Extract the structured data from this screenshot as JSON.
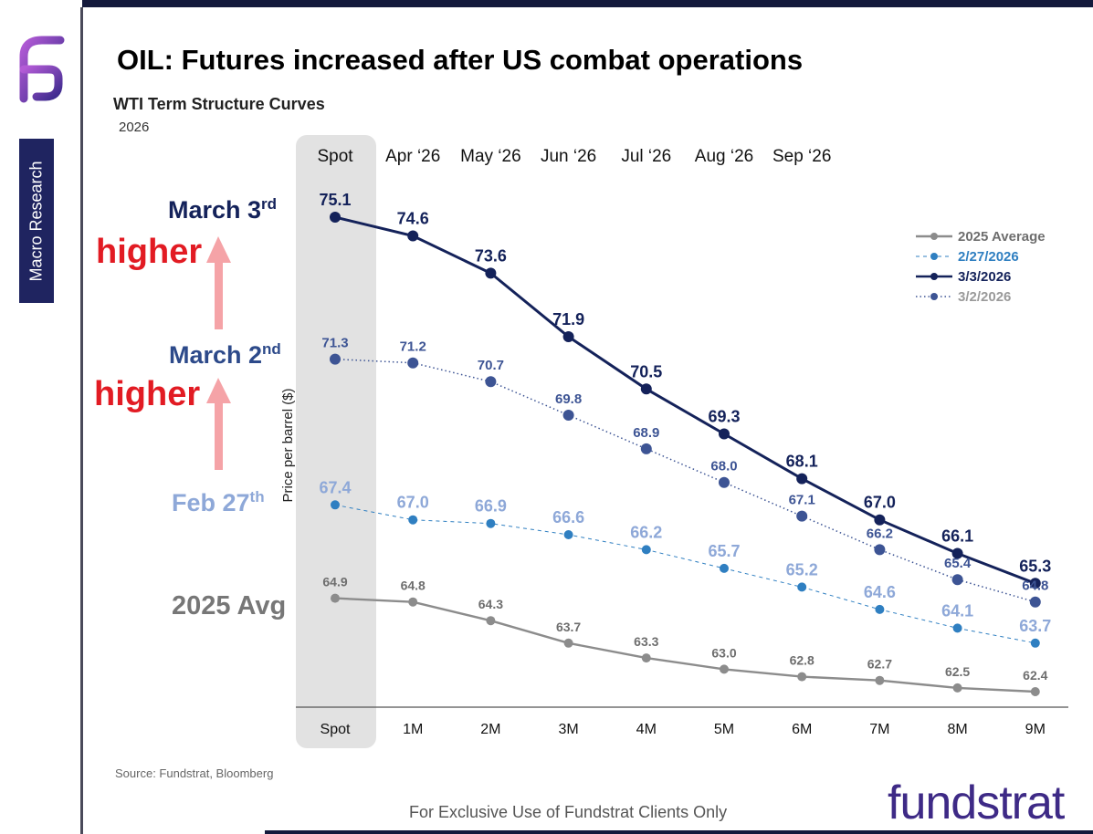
{
  "header": {
    "title": "OIL: Futures increased after US combat operations",
    "subtitle": "WTI Term Structure Curves",
    "year": "2026"
  },
  "sidebar": {
    "tab_label": "Macro Research",
    "logo_icon": "fundstrat-f-logo-icon"
  },
  "annotations": {
    "march3": "March 3",
    "march3_sup": "rd",
    "march2": "March 2",
    "march2_sup": "nd",
    "feb27": "Feb 27",
    "feb27_sup": "th",
    "avg2025": "2025 Avg",
    "higher_1": "higher",
    "higher_2": "higher"
  },
  "footer": {
    "source": "Source: Fundstrat, Bloomberg",
    "disclaimer": "For Exclusive Use of Fundstrat Clients Only",
    "brand": "fundstrat"
  },
  "chart_data": {
    "type": "line",
    "title": "WTI Term Structure Curves",
    "ylabel": "Price per barrel ($)",
    "xlabel": "",
    "categories": [
      "Spot",
      "1M",
      "2M",
      "3M",
      "4M",
      "5M",
      "6M",
      "7M",
      "8M",
      "9M"
    ],
    "top_labels": [
      "Spot",
      "Apr ‘26",
      "May ‘26",
      "Jun ‘26",
      "Jul ‘26",
      "Aug ‘26",
      "Sep ‘26"
    ],
    "ylim": [
      61.5,
      75.5
    ],
    "grid": false,
    "legend_position": "top-right",
    "series": [
      {
        "name": "2025 Average",
        "color": "#8c8c8c",
        "label_color": "#6e6e6e",
        "style": "solid",
        "values": [
          64.9,
          64.8,
          64.3,
          63.7,
          63.3,
          63.0,
          62.8,
          62.7,
          62.5,
          62.4
        ]
      },
      {
        "name": "2/27/2026",
        "color": "#2f7fc1",
        "label_color": "#8ea8d8",
        "style": "dashed",
        "values": [
          67.4,
          67.0,
          66.9,
          66.6,
          66.2,
          65.7,
          65.2,
          64.6,
          64.1,
          63.7
        ]
      },
      {
        "name": "3/3/2026",
        "color": "#14225a",
        "label_color": "#14225a",
        "style": "solid-bold",
        "values": [
          75.1,
          74.6,
          73.6,
          71.9,
          70.5,
          69.3,
          68.1,
          67.0,
          66.1,
          65.3
        ]
      },
      {
        "name": "3/2/2026",
        "color": "#3d5494",
        "label_color": "#3d5494",
        "style": "dotted",
        "values": [
          71.3,
          71.2,
          70.7,
          69.8,
          68.9,
          68.0,
          67.1,
          66.2,
          65.4,
          64.8
        ]
      }
    ],
    "colors": {
      "spot_band": "#e2e2e2",
      "higher_text": "#e21b23",
      "higher_arrow": "#f5a3a7",
      "feb27_text": "#8ea8d8",
      "avg_text": "#777777"
    }
  }
}
